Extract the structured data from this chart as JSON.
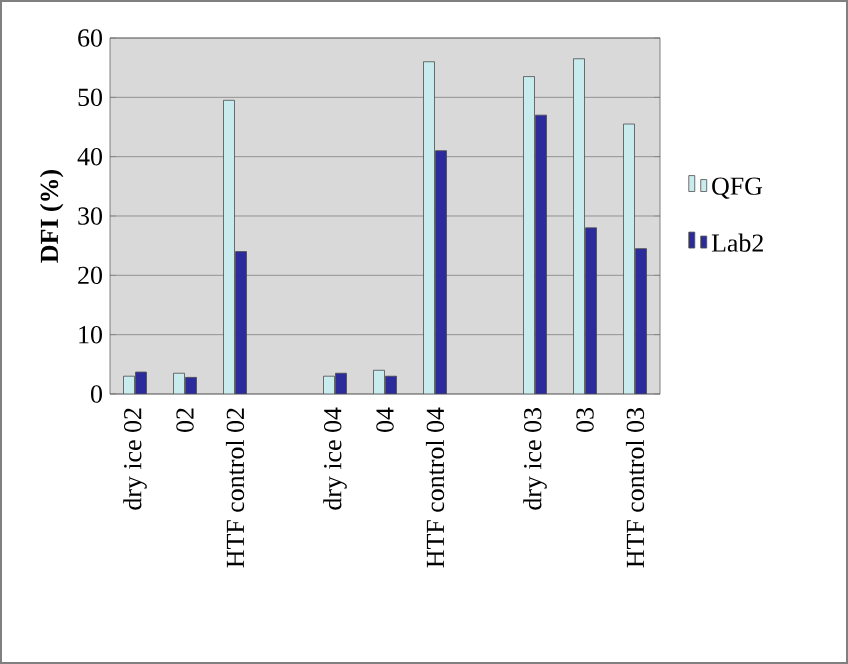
{
  "chart_data": {
    "type": "bar",
    "ylabel": "DFI (%)",
    "categories": [
      "dry ice 02",
      "02",
      "HTF control 02",
      null,
      "dry ice 04",
      "04",
      "HTF control 04",
      null,
      "dry ice 03",
      "03",
      "HTF control 03"
    ],
    "series": [
      {
        "name": "QFG",
        "color": "#c8ecee",
        "values": [
          3,
          3.5,
          49.5,
          null,
          3,
          4,
          56,
          null,
          53.5,
          56.5,
          45.5
        ]
      },
      {
        "name": "Lab2",
        "color": "#2b2b9b",
        "values": [
          3.7,
          2.8,
          24,
          null,
          3.5,
          3,
          41,
          null,
          47,
          28,
          24.5
        ]
      }
    ],
    "ylim": [
      0,
      60
    ],
    "yticks": [
      0,
      10,
      20,
      30,
      40,
      50,
      60
    ],
    "grid": "y",
    "legend": "right"
  }
}
